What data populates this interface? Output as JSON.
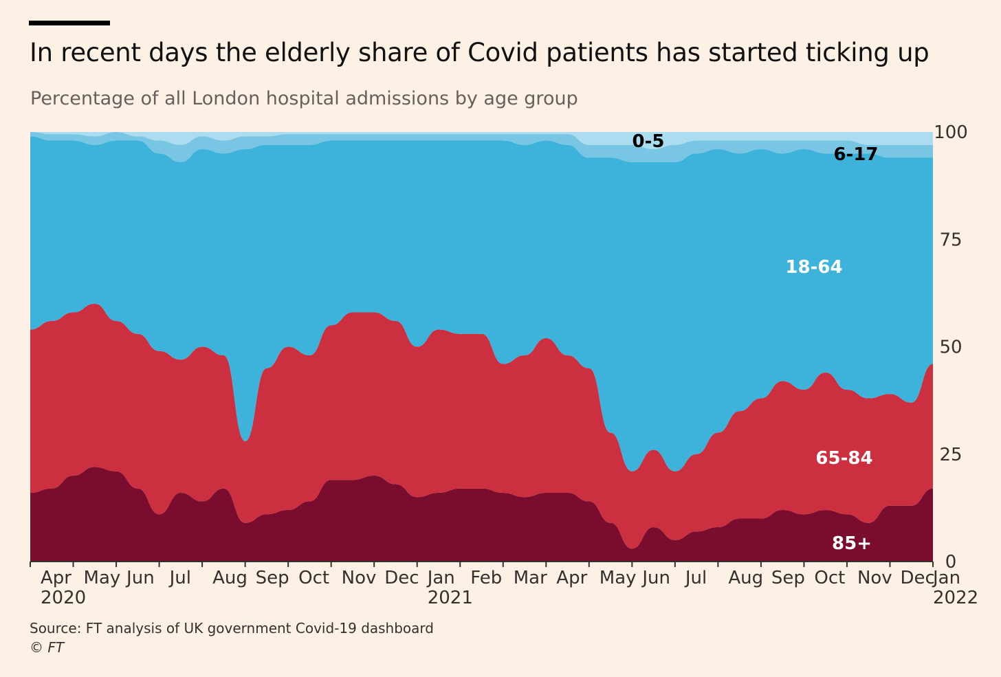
{
  "chart_data": {
    "type": "area",
    "stacked": true,
    "title": "In recent days the elderly share of Covid patients has started ticking up",
    "subtitle": "Percentage of all London hospital admissions by age group",
    "source": "Source: FT analysis of UK government Covid-19 dashboard",
    "copyright": "© FT",
    "ylim": [
      0,
      100
    ],
    "y_ticks": [
      "0",
      "25",
      "50",
      "75",
      "100"
    ],
    "x_unit": "months since Apr 2020",
    "x_ticks": [
      {
        "label": "Apr",
        "year": "2020"
      },
      {
        "label": "May"
      },
      {
        "label": "Jun"
      },
      {
        "label": "Jul"
      },
      {
        "label": "Aug"
      },
      {
        "label": "Sep"
      },
      {
        "label": "Oct"
      },
      {
        "label": "Nov"
      },
      {
        "label": "Dec"
      },
      {
        "label": "Jan",
        "year": "2021"
      },
      {
        "label": "Feb"
      },
      {
        "label": "Mar"
      },
      {
        "label": "Apr"
      },
      {
        "label": "May"
      },
      {
        "label": "Jun"
      },
      {
        "label": "Jul"
      },
      {
        "label": "Aug"
      },
      {
        "label": "Sep"
      },
      {
        "label": "Oct"
      },
      {
        "label": "Nov"
      },
      {
        "label": "Dec"
      },
      {
        "label": "Jan",
        "year": "2022"
      }
    ],
    "x": [
      0,
      0.5,
      1,
      1.5,
      2,
      2.5,
      3,
      3.5,
      4,
      4.5,
      5,
      5.5,
      6,
      6.5,
      7,
      7.5,
      8,
      8.5,
      9,
      9.5,
      10,
      10.5,
      11,
      11.5,
      12,
      12.5,
      13,
      13.5,
      14,
      14.5,
      15,
      15.5,
      16,
      16.5,
      17,
      17.5,
      18,
      18.5,
      19,
      19.5,
      20,
      20.5,
      21
    ],
    "series": [
      {
        "name": "85+",
        "color": "#7a0c2e",
        "label_color": "#ffffff",
        "values": [
          16,
          17,
          20,
          22,
          21,
          17,
          11,
          16,
          14,
          17,
          9,
          11,
          12,
          14,
          19,
          19,
          20,
          18,
          15,
          16,
          17,
          17,
          16,
          15,
          16,
          16,
          14,
          9,
          3,
          8,
          5,
          7,
          8,
          10,
          10,
          12,
          11,
          12,
          11,
          9,
          13,
          13,
          17
        ]
      },
      {
        "name": "65-84",
        "color": "#cc2f3f",
        "label_color": "#ffffff",
        "values": [
          38,
          39,
          38,
          38,
          35,
          36,
          38,
          31,
          36,
          31,
          19,
          34,
          38,
          34,
          36,
          39,
          38,
          38,
          35,
          38,
          36,
          36,
          30,
          33,
          36,
          32,
          31,
          21,
          18,
          18,
          16,
          18,
          22,
          25,
          28,
          30,
          29,
          32,
          29,
          29,
          26,
          24,
          29
        ]
      },
      {
        "name": "18-64",
        "color": "#3db2da",
        "label_color": "#ffffff",
        "values": [
          45,
          42,
          40,
          37,
          42,
          45,
          46,
          46,
          46,
          47,
          68,
          52,
          47,
          49,
          43,
          40,
          40,
          42,
          48,
          44,
          45,
          45,
          52,
          49,
          46,
          49,
          49,
          64,
          72,
          67,
          72,
          70,
          66,
          60,
          58,
          53,
          56,
          51,
          55,
          57,
          55,
          57,
          48
        ]
      },
      {
        "name": "6-17",
        "color": "#79c6e4",
        "label_color": "#000000",
        "values": [
          1,
          1.5,
          1.5,
          2,
          2,
          1,
          3,
          4,
          3,
          3,
          3,
          2,
          2.5,
          2.5,
          1.5,
          1.5,
          1.5,
          1.5,
          1.5,
          1.5,
          1.5,
          1.5,
          1.5,
          2.5,
          1.5,
          2.5,
          3,
          3,
          4,
          3,
          4,
          3,
          2,
          3,
          2,
          3,
          2,
          3,
          3,
          2,
          3,
          3,
          3
        ]
      },
      {
        "name": "0-5",
        "color": "#abdcef",
        "label_color": "#000000",
        "values": [
          0,
          0.5,
          0.5,
          1,
          0,
          1,
          2,
          3,
          1,
          2,
          1,
          1,
          0.5,
          0.5,
          0.5,
          0.5,
          0.5,
          0.5,
          0.5,
          0.5,
          0.5,
          0.5,
          0.5,
          0.5,
          0.5,
          0.5,
          3,
          3,
          3,
          4,
          3,
          2,
          2,
          2,
          2,
          2,
          2,
          2,
          2,
          3,
          3,
          3,
          3
        ]
      }
    ]
  }
}
